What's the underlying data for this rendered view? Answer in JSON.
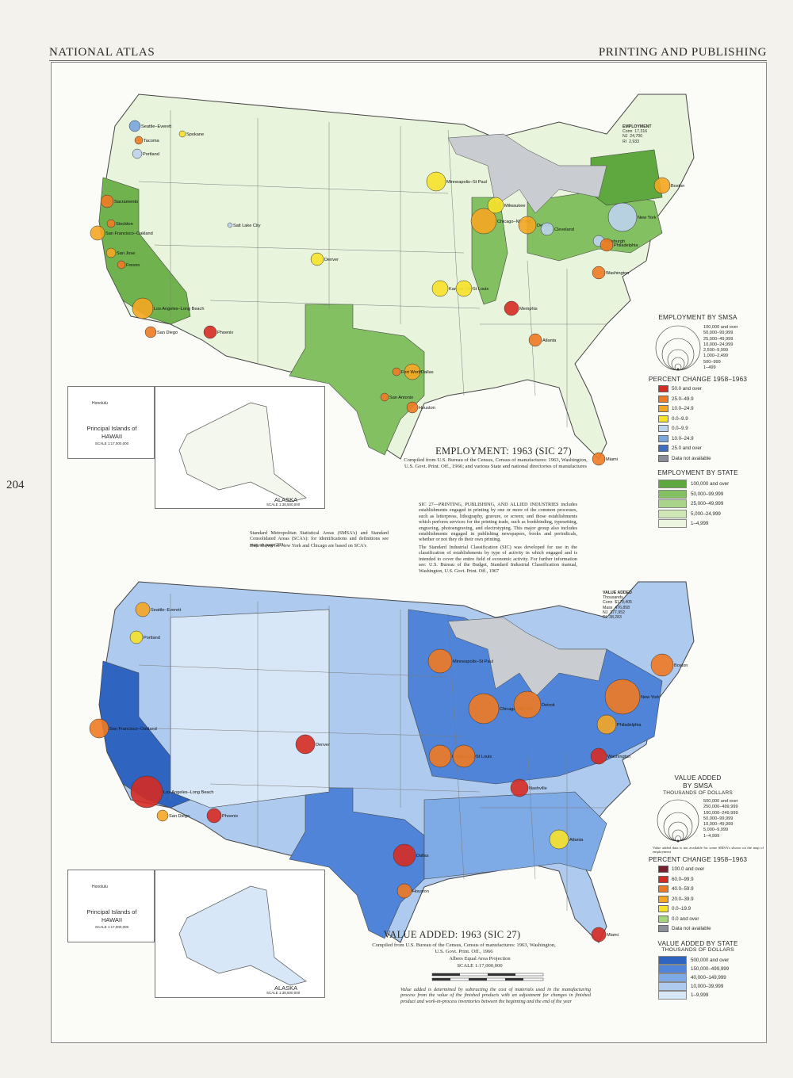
{
  "header": {
    "left": "NATIONAL ATLAS",
    "right": "PRINTING AND PUBLISHING",
    "page_number": "204"
  },
  "employment_map": {
    "title": "EMPLOYMENT: 1963 (SIC 27)",
    "caption": "Compiled from U.S. Bureau of the Census, Census of manufactures: 1963, Washington, U.S. Govt. Print. Off., 1966; and various State and national directories of manufactures",
    "sic_note": "SIC 27—PRINTING, PUBLISHING, AND ALLIED INDUSTRIES includes establishments engaged in printing by one or more of the common processes, such as letterpress, lithography, gravure, or screen; and those establishments which perform services for the printing trade, such as bookbinding, typesetting, engraving, photoengraving, and electrotyping. This major group also includes establishments engaged in publishing newspapers, books and periodicals, whether or not they do their own printing.",
    "sic_note2": "The Standard Industrial Classification (SIC) was developed for use in the classification of establishments by type of activity in which engaged and is intended to cover the entire field of economic activity. For further information see: U.S. Bureau of the Budget, Standard Industrial Classification manual, Washington, U.S. Govt. Print. Off., 1967",
    "smsa_note": "Standard Metropolitan Statistical Areas (SMSA's) and Standard Consolidated Areas (SCA's): for identifications and definitions see map on page 293",
    "chicago_note": "Data shown for New York and Chicago are based on SCA's",
    "ref_table": {
      "title": "EMPLOYMENT",
      "rows": [
        [
          "Conn",
          "17,316"
        ],
        [
          "NJ",
          "24,700"
        ],
        [
          "RI",
          "2,933"
        ]
      ]
    },
    "smsa_legend": {
      "title": "EMPLOYMENT BY SMSA",
      "classes": [
        "100,000 and over",
        "50,000–99,999",
        "25,000–49,999",
        "10,000–24,999",
        "2,500–9,999",
        "1,000–2,499",
        "500–999",
        "1–499"
      ]
    },
    "pct_legend": {
      "title": "PERCENT CHANGE 1958–1963",
      "classes": [
        {
          "label": "50.0 and over",
          "color": "#d62b22"
        },
        {
          "label": "25.0–49.9",
          "color": "#f07a23"
        },
        {
          "label": "10.0–24.9",
          "color": "#f5a623"
        },
        {
          "label": "0.0–9.9",
          "color": "#f7e22a"
        },
        {
          "label": "0.0–9.9",
          "color": "#bcd3ee"
        },
        {
          "label": "10.0–24.9",
          "color": "#7aa6e0"
        },
        {
          "label": "25.0 and over",
          "color": "#3c6fc4"
        },
        {
          "label": "Data not available",
          "color": "#8a8f98"
        }
      ],
      "plus": "+",
      "minus": "−"
    },
    "state_legend": {
      "title": "EMPLOYMENT BY STATE",
      "classes": [
        {
          "label": "100,000 and over",
          "color": "#5fa83f"
        },
        {
          "label": "50,000–99,999",
          "color": "#83c062"
        },
        {
          "label": "25,000–49,999",
          "color": "#a9d48a"
        },
        {
          "label": "5,000–24,999",
          "color": "#cfe6b6"
        },
        {
          "label": "1–4,999",
          "color": "#ecf5e0"
        }
      ]
    },
    "hawaii": {
      "label": "Principal Islands of",
      "name": "HAWAII",
      "scale": "SCALE 1:17,000,000",
      "city": "Honolulu"
    },
    "alaska": {
      "name": "ALASKA",
      "scale": "SCALE 1:38,500,000"
    }
  },
  "value_map": {
    "title": "VALUE ADDED: 1963 (SIC 27)",
    "caption": "Compiled from U.S. Bureau of the Census, Census of manufactures: 1963, Washington, U.S. Govt. Print. Off., 1966",
    "projection": "Albers Equal Area Projection",
    "scale": "SCALE 1:17,000,000",
    "scale_miles": [
      "0",
      "100",
      "200",
      "300",
      "400 MILES"
    ],
    "scale_km": [
      "0",
      "100",
      "200",
      "300",
      "400",
      "500",
      "600 KILOMETERS"
    ],
    "value_note": "Value added is determined by subtracting the cost of materials used in the manufacturing process from the value of the finished products with an adjustment for changes in finished product and work-in-process inventories between the beginning and the end of the year",
    "ref_table": {
      "title": "VALUE ADDED",
      "subtitle": "Thousands",
      "rows": [
        [
          "Conn",
          "$179,405"
        ],
        [
          "Mass",
          "476,858"
        ],
        [
          "NJ",
          "377,952"
        ],
        [
          "RI",
          "38,283"
        ]
      ]
    },
    "smsa_legend": {
      "title1": "VALUE ADDED",
      "title2": "BY SMSA",
      "title3": "THOUSANDS OF DOLLARS",
      "classes": [
        "500,000 and over",
        "250,000–499,999",
        "100,000–249,999",
        "50,000–99,999",
        "10,000–49,999",
        "5,000–9,999",
        "1–4,999"
      ],
      "note": "Value added data is not available for some SMSA's shown on the map of employment"
    },
    "pct_legend": {
      "title": "PERCENT CHANGE 1958–1963",
      "classes": [
        {
          "label": "100.0 and over",
          "color": "#7a1f2b"
        },
        {
          "label": "60.0–99.9",
          "color": "#d62b22"
        },
        {
          "label": "40.0–59.9",
          "color": "#f07a23"
        },
        {
          "label": "20.0–39.9",
          "color": "#f5a623"
        },
        {
          "label": "0.0–19.9",
          "color": "#f7e22a"
        },
        {
          "label": "0.0 and over",
          "color": "#a5d67a"
        },
        {
          "label": "Data not available",
          "color": "#8a8f98"
        }
      ],
      "plus": "+",
      "minus": "−"
    },
    "state_legend": {
      "title1": "VALUE ADDED BY STATE",
      "title2": "THOUSANDS OF DOLLARS",
      "classes": [
        {
          "label": "500,000 and over",
          "color": "#2f64c0"
        },
        {
          "label": "150,000–499,999",
          "color": "#4f84d8"
        },
        {
          "label": "40,000–149,999",
          "color": "#7eaae6"
        },
        {
          "label": "10,000–39,999",
          "color": "#aecbef"
        },
        {
          "label": "1–9,999",
          "color": "#d8e7f7"
        }
      ]
    },
    "hawaii": {
      "label": "Principal Islands of",
      "name": "HAWAII",
      "scale": "SCALE 1:17,000,000",
      "city": "Honolulu"
    },
    "alaska": {
      "name": "ALASKA",
      "scale": "SCALE 1:38,500,000"
    }
  },
  "cities_top": [
    {
      "name": "Seattle–Everett",
      "c": "#7aa6e0"
    },
    {
      "name": "Tacoma",
      "c": "#f07a23"
    },
    {
      "name": "Spokane",
      "c": "#f7e22a"
    },
    {
      "name": "Portland",
      "c": "#bcd3ee"
    },
    {
      "name": "Sacramento",
      "c": "#f07a23"
    },
    {
      "name": "San Francisco–Oakland",
      "c": "#f5a623"
    },
    {
      "name": "Stockton",
      "c": "#f07a23"
    },
    {
      "name": "San Jose",
      "c": "#f5a623"
    },
    {
      "name": "Fresno",
      "c": "#f07a23"
    },
    {
      "name": "Los Angeles–Long Beach",
      "c": "#f5a623"
    },
    {
      "name": "San Diego",
      "c": "#f07a23"
    },
    {
      "name": "Phoenix",
      "c": "#d62b22"
    },
    {
      "name": "Salt Lake City",
      "c": "#bcd3ee"
    },
    {
      "name": "Denver",
      "c": "#f7e22a"
    },
    {
      "name": "Dallas",
      "c": "#f5a623"
    },
    {
      "name": "Fort Worth",
      "c": "#f07a23"
    },
    {
      "name": "Houston",
      "c": "#f07a23"
    },
    {
      "name": "San Antonio",
      "c": "#f07a23"
    },
    {
      "name": "Kansas City",
      "c": "#f7e22a"
    },
    {
      "name": "St Louis",
      "c": "#f7e22a"
    },
    {
      "name": "Minneapolis–St Paul",
      "c": "#f7e22a"
    },
    {
      "name": "Chicago–NW Ind",
      "c": "#f5a623"
    },
    {
      "name": "Milwaukee",
      "c": "#f7e22a"
    },
    {
      "name": "Detroit",
      "c": "#f5a623"
    },
    {
      "name": "Cleveland",
      "c": "#bcd3ee"
    },
    {
      "name": "Pittsburgh",
      "c": "#bcd3ee"
    },
    {
      "name": "New York",
      "c": "#bcd3ee"
    },
    {
      "name": "Philadelphia",
      "c": "#f07a23"
    },
    {
      "name": "Boston",
      "c": "#f5a623"
    },
    {
      "name": "Atlanta",
      "c": "#f07a23"
    },
    {
      "name": "Memphis",
      "c": "#d62b22"
    },
    {
      "name": "Miami",
      "c": "#f07a23"
    },
    {
      "name": "Washington",
      "c": "#f07a23"
    }
  ],
  "cities_bottom": [
    {
      "name": "Seattle–Everett",
      "c": "#f5a623"
    },
    {
      "name": "Portland",
      "c": "#f7e22a"
    },
    {
      "name": "San Francisco–Oakland",
      "c": "#f07a23"
    },
    {
      "name": "Los Angeles–Long Beach",
      "c": "#d62b22"
    },
    {
      "name": "San Diego",
      "c": "#f5a623"
    },
    {
      "name": "Phoenix",
      "c": "#d62b22"
    },
    {
      "name": "Denver",
      "c": "#d62b22"
    },
    {
      "name": "Dallas",
      "c": "#d62b22"
    },
    {
      "name": "Houston",
      "c": "#f07a23"
    },
    {
      "name": "Kansas City",
      "c": "#f07a23"
    },
    {
      "name": "St Louis",
      "c": "#f07a23"
    },
    {
      "name": "Minneapolis–St Paul",
      "c": "#f07a23"
    },
    {
      "name": "Chicago–NW Ind",
      "c": "#f07a23"
    },
    {
      "name": "Detroit",
      "c": "#f07a23"
    },
    {
      "name": "New York",
      "c": "#f07a23"
    },
    {
      "name": "Philadelphia",
      "c": "#f5a623"
    },
    {
      "name": "Boston",
      "c": "#f07a23"
    },
    {
      "name": "Atlanta",
      "c": "#f7e22a"
    },
    {
      "name": "Nashville",
      "c": "#d62b22"
    },
    {
      "name": "Miami",
      "c": "#d62b22"
    },
    {
      "name": "Washington",
      "c": "#d62b22"
    }
  ]
}
